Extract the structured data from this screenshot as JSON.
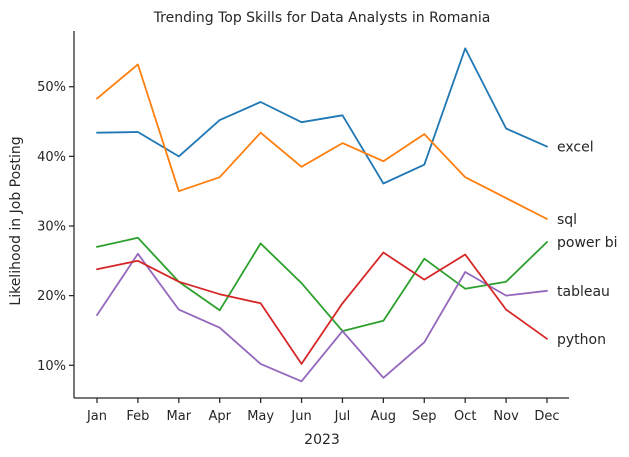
{
  "chart_data": {
    "type": "line",
    "title": "Trending Top Skills for Data Analysts in Romania",
    "xlabel": "2023",
    "ylabel": "Likelihood in Job Posting",
    "categories": [
      "Jan",
      "Feb",
      "Mar",
      "Apr",
      "May",
      "Jun",
      "Jul",
      "Aug",
      "Sep",
      "Oct",
      "Nov",
      "Dec"
    ],
    "ylim": [
      5.3,
      58.0
    ],
    "yticks": [
      10,
      20,
      30,
      40,
      50
    ],
    "ytick_labels": [
      "10%",
      "20%",
      "30%",
      "40%",
      "50%"
    ],
    "grid": false,
    "legend": "none (labels at line ends)",
    "series": [
      {
        "name": "excel",
        "color": "#1f77b4",
        "values": [
          43.4,
          43.5,
          40.0,
          45.2,
          47.8,
          44.9,
          45.9,
          36.1,
          38.8,
          55.5,
          44.0,
          41.4
        ]
      },
      {
        "name": "sql",
        "color": "#ff7f0e",
        "values": [
          48.3,
          53.2,
          35.0,
          37.0,
          43.4,
          38.5,
          41.9,
          39.3,
          43.2,
          37.0,
          34.0,
          31.0
        ]
      },
      {
        "name": "power bi",
        "color": "#2ca02c",
        "values": [
          27.0,
          28.3,
          22.0,
          17.9,
          27.5,
          21.8,
          14.9,
          16.4,
          25.3,
          21.0,
          22.0,
          27.7
        ]
      },
      {
        "name": "tableau",
        "color": "#9467bd",
        "values": [
          17.2,
          26.0,
          18.0,
          15.4,
          10.2,
          7.7,
          14.9,
          8.2,
          13.3,
          23.4,
          20.0,
          20.7
        ]
      },
      {
        "name": "python",
        "color": "#d62728",
        "values": [
          23.8,
          25.0,
          22.0,
          20.2,
          18.9,
          10.2,
          18.9,
          26.2,
          22.3,
          25.9,
          18.0,
          13.8
        ]
      }
    ]
  }
}
